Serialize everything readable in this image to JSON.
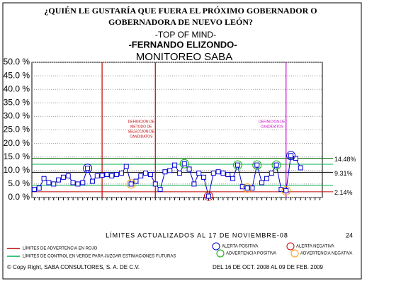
{
  "chart_data": {
    "type": "line",
    "title": [
      "¿QUIÉN LE GUSTARÍA QUE FUERA EL PRÓXIMO GOBERNADOR O",
      "GOBERNADORA DE NUEVO LEÓN?"
    ],
    "subtitle": [
      "-TOP OF MIND-",
      "-FERNANDO ELIZONDO-",
      "MONITOREO SABA"
    ],
    "categories": [
      null,
      null,
      null,
      null,
      null,
      null,
      null,
      null,
      null,
      null,
      null,
      null,
      null,
      null,
      null,
      null,
      null,
      null,
      null,
      null,
      null,
      null,
      null,
      null,
      null,
      null,
      null,
      null,
      null,
      null,
      null,
      null,
      null,
      null,
      null,
      null,
      null,
      null,
      null,
      null,
      null,
      null,
      null,
      null,
      null,
      null,
      null,
      null,
      null,
      null,
      null,
      null,
      null,
      null,
      null,
      null,
      null,
      null,
      null,
      null
    ],
    "series": [
      {
        "color": "#0000cc",
        "values": [
          3.0,
          3.5,
          7.0,
          5.5,
          5.0,
          6.5,
          7.5,
          8.0,
          5.5,
          5.0,
          5.5,
          10.8,
          6.0,
          8.0,
          8.2,
          8.5,
          8.0,
          8.5,
          9.0,
          11.5,
          5.0,
          6.0,
          8.0,
          9.0,
          8.5,
          5.0,
          3.0,
          9.5,
          10.0,
          12.0,
          9.0,
          12.5,
          10.5,
          5.0,
          9.0,
          7.5,
          0.5,
          9.0,
          9.5,
          9.0,
          8.5,
          7.0,
          12.0,
          4.0,
          3.5,
          3.5,
          12.0,
          5.5,
          7.0,
          9.0,
          12.0,
          3.0,
          2.5,
          15.5,
          14.5,
          11.0,
          null,
          null,
          null,
          null
        ]
      }
    ],
    "ylim": [
      0,
      50
    ],
    "yticks": [
      {
        "value": 0,
        "label": "0.0 %"
      },
      {
        "value": 5,
        "label": "5.0 %"
      },
      {
        "value": 10,
        "label": "10.0 %"
      },
      {
        "value": 15,
        "label": "15.0 %"
      },
      {
        "value": 20,
        "label": "20.0 %"
      },
      {
        "value": 25,
        "label": "25.0 %"
      },
      {
        "value": 30,
        "label": "30.0 %"
      },
      {
        "value": 35,
        "label": "35.0 %"
      },
      {
        "value": 40,
        "label": "40.0 %"
      },
      {
        "value": 45,
        "label": "45.0 %"
      },
      {
        "value": 50,
        "label": "50.0 %"
      }
    ],
    "grid": true,
    "hlines": [
      {
        "value": 14.48,
        "label": "14.48%",
        "color": "#006600"
      },
      {
        "value": 12.3,
        "color": "#00b050"
      },
      {
        "value": 9.31,
        "label": "9.31%",
        "color": "#000000"
      },
      {
        "value": 4.5,
        "color": "#00b050"
      },
      {
        "value": 2.14,
        "label": "2.14%",
        "color": "#c00000"
      }
    ],
    "vlines": [
      {
        "index": 14,
        "color": "#c00000"
      },
      {
        "index": 25,
        "color": "#c00000",
        "label": [
          "DEFINICION DE",
          "METODO DE",
          "SELECCION DE",
          "CANDIDATOS"
        ]
      },
      {
        "index": 52,
        "color": "#cc00cc",
        "label": [
          "DEFINICION DE",
          "CANDIDATOS"
        ]
      }
    ],
    "highlights": [
      {
        "index": 11,
        "kind": 0
      },
      {
        "index": 53,
        "kind": 0
      },
      {
        "index": 36,
        "kind": 1
      },
      {
        "index": 31,
        "kind": 2
      },
      {
        "index": 42,
        "kind": 2
      },
      {
        "index": 46,
        "kind": 2
      },
      {
        "index": 50,
        "kind": 2
      },
      {
        "index": 20,
        "kind": 3
      },
      {
        "index": 44,
        "kind": 3
      },
      {
        "index": 52,
        "kind": 3
      }
    ],
    "marker_legend": [
      {
        "name": "ALERTA POSITIVA",
        "color": "#0000cc"
      },
      {
        "name": "ALERTA NEGATIVA",
        "color": "#cc0000"
      },
      {
        "name": "ADVERTENCIA POSITIVA",
        "color": "#00aa00"
      },
      {
        "name": "ADVERTENCIA NEGATIVA",
        "color": "#ff9900"
      }
    ],
    "line_legend": [
      {
        "name": "LÍMITES DE ADVERTENCIA EN ROJO",
        "color": "#c00000"
      },
      {
        "name": "LÍMITES DE CONTROL EN VERDE PARA JUZGAR ESTIMACIONES FUTURAS",
        "color": "#00b050"
      }
    ],
    "note": "LÍMITES ACTUALIZADOS AL 17 DE NOVIEMBRE-08",
    "sample_count": "24",
    "footer_left": "© Copy Right, SABA CONSULTORES, S. A. DE C.V.",
    "footer_right": "DEL 16 DE OCT. 2008 AL 09 DE FEB. 2009"
  }
}
